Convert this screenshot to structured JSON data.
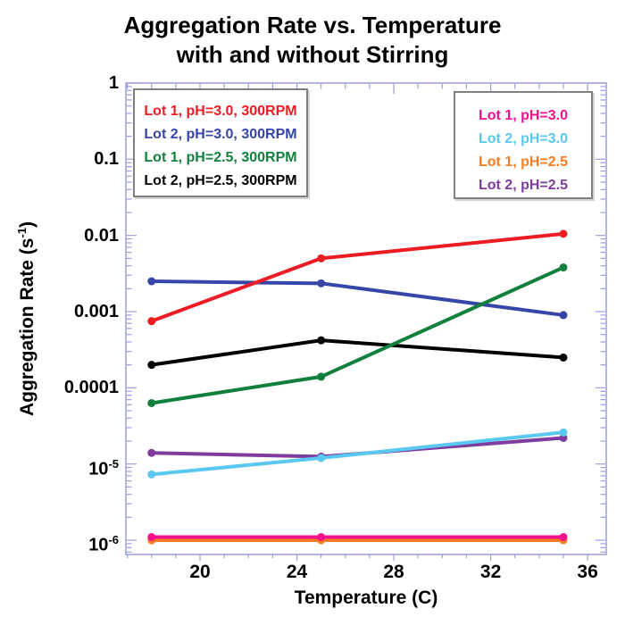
{
  "title": {
    "line1": "Aggregation Rate vs. Temperature",
    "line2": "with and without Stirring"
  },
  "x_axis": {
    "label": "Temperature (C)"
  },
  "y_axis": {
    "label_pre": "Aggregation Rate (s",
    "label_sup": "-1",
    "label_post": ")"
  },
  "colors": {
    "frame": "#9c9cdc",
    "text": "#000000",
    "legend_border": "#808080",
    "red": "#ed1b23",
    "blue": "#3546a8",
    "green": "#11803c",
    "black": "#000000",
    "magenta": "#f2108e",
    "cyan": "#5ac8f0",
    "orange": "#f57c20",
    "purple": "#7d3c9e"
  },
  "chart_data": {
    "type": "line",
    "title": "Aggregation Rate vs. Temperature with and without Stirring",
    "xlabel": "Temperature (C)",
    "ylabel": "Aggregation Rate (s^-1)",
    "x": [
      18,
      25,
      35
    ],
    "x_range": [
      16.94,
      36.77
    ],
    "x_ticks": [
      20,
      24,
      28,
      32,
      36
    ],
    "x_minor_from": 17,
    "x_minor_to": 36,
    "y_scale": "log",
    "y_range": [
      6.5e-07,
      1
    ],
    "grid": "off",
    "legend_position": "two boxes inside plot area, top-left (stirred 300RPM) and top-right (unstirred)",
    "y_ticks": [
      {
        "v": 1,
        "text": "1"
      },
      {
        "v": 0.1,
        "text": "0.1"
      },
      {
        "v": 0.01,
        "text": "0.01"
      },
      {
        "v": 0.001,
        "text": "0.001"
      },
      {
        "v": 0.0001,
        "text": "0.0001"
      },
      {
        "v": 1e-05,
        "base": "10",
        "exp": "-5"
      },
      {
        "v": 1e-06,
        "base": "10",
        "exp": "-6"
      }
    ],
    "series": [
      {
        "key": "lot2-ph2p5-300rpm",
        "name": "Lot 2, pH=2.5, 300RPM",
        "color": "#000000",
        "values": [
          0.0002,
          0.00042,
          0.00025
        ]
      },
      {
        "key": "lot2-ph3p0-300rpm",
        "name": "Lot 2, pH=3.0, 300RPM",
        "color": "#3546a8",
        "values": [
          0.0025,
          0.00235,
          0.0009
        ]
      },
      {
        "key": "lot1-ph2p5-300rpm",
        "name": "Lot 1, pH=2.5, 300RPM",
        "color": "#11803c",
        "values": [
          6.3e-05,
          0.00014,
          0.0038
        ]
      },
      {
        "key": "lot1-ph3p0-300rpm",
        "name": "Lot 1, pH=3.0, 300RPM",
        "color": "#ed1b23",
        "values": [
          0.00075,
          0.005,
          0.0105
        ]
      },
      {
        "key": "lot1-ph2p5",
        "name": "Lot 1, pH=2.5",
        "color": "#f57c20",
        "values": [
          1e-06,
          1e-06,
          1e-06
        ]
      },
      {
        "key": "lot1-ph3p0",
        "name": "Lot 1, pH=3.0",
        "color": "#f2108e",
        "values": [
          1.1e-06,
          1.1e-06,
          1.1e-06
        ]
      },
      {
        "key": "lot2-ph2p5",
        "name": "Lot 2, pH=2.5",
        "color": "#7d3c9e",
        "values": [
          1.4e-05,
          1.25e-05,
          2.2e-05
        ]
      },
      {
        "key": "lot2-ph3p0",
        "name": "Lot 2, pH=3.0",
        "color": "#5ac8f0",
        "values": [
          7.3e-06,
          1.2e-05,
          2.6e-05
        ]
      }
    ]
  },
  "legend_left": {
    "series_indexes": [
      3,
      1,
      2,
      0
    ]
  },
  "legend_right": {
    "series_indexes": [
      5,
      7,
      4,
      6
    ]
  }
}
